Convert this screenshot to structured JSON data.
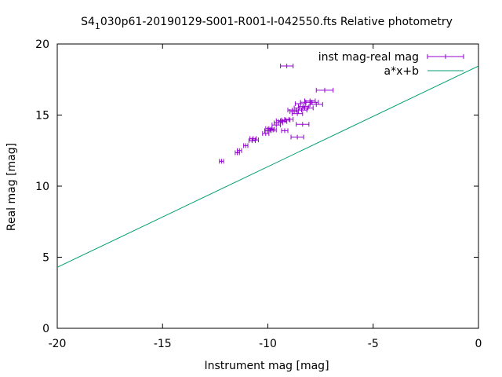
{
  "chart_data": {
    "type": "scatter",
    "title_prefix": "S4",
    "title_subscript": "1",
    "title_rest": "030p61-20190129-S001-R001-I-042550.fts Relative photometry",
    "xlabel": "Instrument mag [mag]",
    "ylabel": "Real mag [mag]",
    "xlim": [
      -20,
      0
    ],
    "ylim": [
      0,
      20
    ],
    "xticks": [
      -20,
      -15,
      -10,
      -5,
      0
    ],
    "yticks": [
      0,
      5,
      10,
      15,
      20
    ],
    "legend_position": "top-right",
    "grid": false,
    "series": [
      {
        "name": "inst mag-real mag",
        "kind": "errorbars",
        "color": "#9400d3",
        "points": [
          {
            "x": -12.2,
            "y": 11.75,
            "xerr": 0.1
          },
          {
            "x": -11.45,
            "y": 12.35,
            "xerr": 0.1
          },
          {
            "x": -11.35,
            "y": 12.5,
            "xerr": 0.1
          },
          {
            "x": -11.05,
            "y": 12.85,
            "xerr": 0.1
          },
          {
            "x": -10.75,
            "y": 13.2,
            "xerr": 0.15
          },
          {
            "x": -10.7,
            "y": 13.35,
            "xerr": 0.15
          },
          {
            "x": -10.6,
            "y": 13.25,
            "xerr": 0.15
          },
          {
            "x": -10.1,
            "y": 13.7,
            "xerr": 0.15
          },
          {
            "x": -10.0,
            "y": 13.9,
            "xerr": 0.15
          },
          {
            "x": -9.95,
            "y": 14.05,
            "xerr": 0.15
          },
          {
            "x": -9.85,
            "y": 14.0,
            "xerr": 0.15
          },
          {
            "x": -9.75,
            "y": 13.95,
            "xerr": 0.15
          },
          {
            "x": -9.6,
            "y": 14.3,
            "xerr": 0.2
          },
          {
            "x": -9.5,
            "y": 14.45,
            "xerr": 0.2
          },
          {
            "x": -9.4,
            "y": 14.6,
            "xerr": 0.2
          },
          {
            "x": -9.3,
            "y": 14.55,
            "xerr": 0.2
          },
          {
            "x": -9.15,
            "y": 14.65,
            "xerr": 0.2
          },
          {
            "x": -9.0,
            "y": 14.7,
            "xerr": 0.2
          },
          {
            "x": -9.2,
            "y": 13.9,
            "xerr": 0.15
          },
          {
            "x": -8.85,
            "y": 15.35,
            "xerr": 0.2
          },
          {
            "x": -8.75,
            "y": 15.25,
            "xerr": 0.2
          },
          {
            "x": -8.6,
            "y": 15.1,
            "xerr": 0.25
          },
          {
            "x": -8.5,
            "y": 15.5,
            "xerr": 0.25
          },
          {
            "x": -8.45,
            "y": 15.8,
            "xerr": 0.25
          },
          {
            "x": -8.4,
            "y": 15.35,
            "xerr": 0.25
          },
          {
            "x": -8.3,
            "y": 15.6,
            "xerr": 0.25
          },
          {
            "x": -8.2,
            "y": 15.9,
            "xerr": 0.25
          },
          {
            "x": -8.1,
            "y": 15.5,
            "xerr": 0.25
          },
          {
            "x": -8.0,
            "y": 16.0,
            "xerr": 0.25
          },
          {
            "x": -7.9,
            "y": 15.9,
            "xerr": 0.3
          },
          {
            "x": -7.7,
            "y": 15.75,
            "xerr": 0.3
          },
          {
            "x": -7.3,
            "y": 16.75,
            "xerr": 0.4
          },
          {
            "x": -8.35,
            "y": 14.35,
            "xerr": 0.3
          },
          {
            "x": -8.6,
            "y": 13.45,
            "xerr": 0.3
          },
          {
            "x": -9.1,
            "y": 18.45,
            "xerr": 0.3
          }
        ]
      },
      {
        "name": "a*x+b",
        "kind": "line",
        "color": "#009e73",
        "slope": 0.708,
        "intercept": 18.45
      }
    ]
  }
}
